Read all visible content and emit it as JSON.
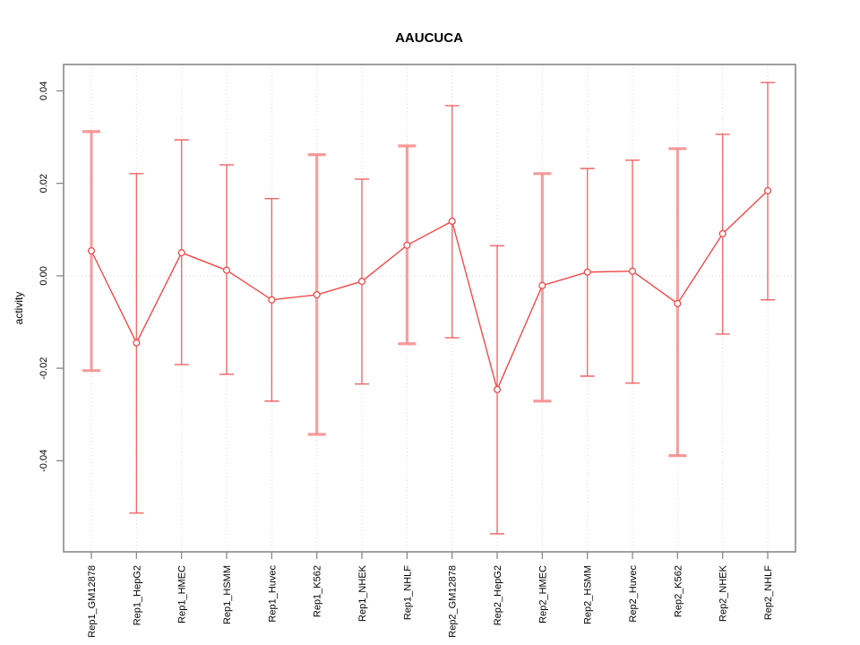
{
  "chart_data": {
    "type": "line",
    "title": "AAUCUCA",
    "xlabel": "",
    "ylabel": "activity",
    "legend": "none",
    "grid": {
      "vertical": "dotted line at every category",
      "horizontal": "dotted line at y=0 only"
    },
    "categories": [
      "Rep1_GM12878",
      "Rep1_HepG2",
      "Rep1_HMEC",
      "Rep1_HSMM",
      "Rep1_Huvec",
      "Rep1_K562",
      "Rep1_NHEK",
      "Rep1_NHLF",
      "Rep2_GM12878",
      "Rep2_HepG2",
      "Rep2_HMEC",
      "Rep2_HSMM",
      "Rep2_Huvec",
      "Rep2_K562",
      "Rep2_NHEK",
      "Rep2_NHLF"
    ],
    "series": [
      {
        "name": "activity",
        "marker": "open-circle",
        "values": [
          0.0054,
          -0.0145,
          0.005,
          0.0012,
          -0.0052,
          -0.0041,
          -0.0012,
          0.0066,
          0.0118,
          -0.0246,
          -0.0021,
          0.0008,
          0.001,
          -0.006,
          0.0091,
          0.0184
        ],
        "error_upper": [
          0.0312,
          0.0221,
          0.0294,
          0.024,
          0.0167,
          0.0262,
          0.0209,
          0.0281,
          0.0368,
          0.0065,
          0.0221,
          0.0232,
          0.025,
          0.0275,
          0.0306,
          0.0418
        ],
        "error_lower": [
          -0.0205,
          -0.0513,
          -0.0192,
          -0.0213,
          -0.0271,
          -0.0343,
          -0.0234,
          -0.0147,
          -0.0134,
          -0.0558,
          -0.0271,
          -0.0217,
          -0.0232,
          -0.0389,
          -0.0126,
          -0.0052
        ],
        "heavy_error_bar_indices": [
          0,
          5,
          7,
          10,
          13
        ]
      }
    ],
    "yticks": [
      0.04,
      0.02,
      0.0,
      -0.02,
      -0.04
    ],
    "ytick_labels": [
      "0.04",
      "0.02",
      "0.00",
      "-0.02",
      "-0.04"
    ],
    "ylim": [
      -0.0597,
      0.0457
    ],
    "colors": {
      "line": "#f04a4a",
      "marker": "#f04a4a",
      "error_bar_thin": "#ef5454",
      "error_bar_heavy": "#f69090",
      "grid": "#d9d9d9",
      "axis_frame": "#888888",
      "text": "#000000",
      "background": "#ffffff"
    }
  }
}
